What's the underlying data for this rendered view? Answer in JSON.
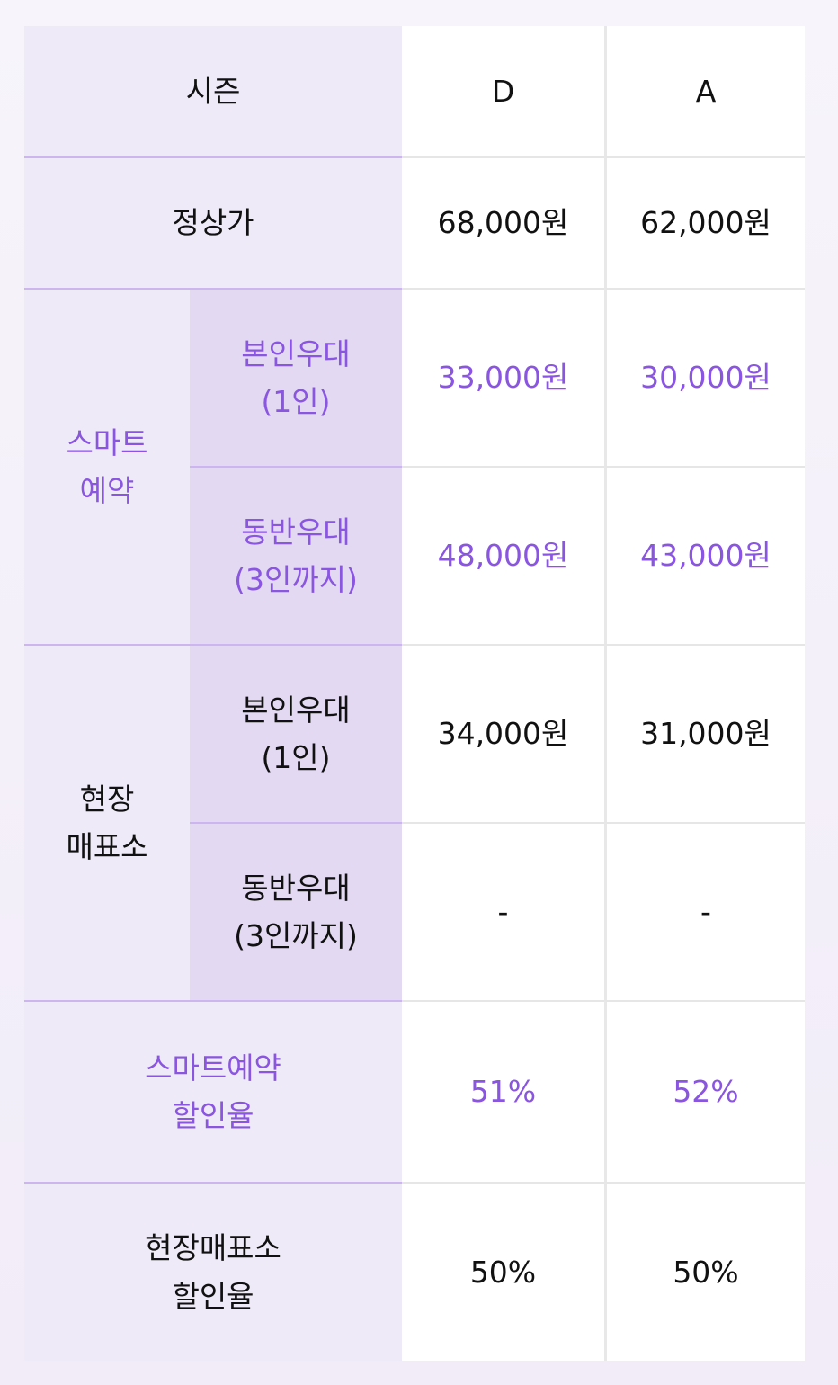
{
  "table": {
    "season_label": "시즌",
    "columns": [
      "D",
      "A"
    ],
    "regular_label": "정상가",
    "regular_prices": [
      "68,000원",
      "62,000원"
    ],
    "smart": {
      "label": "스마트\n예약",
      "self_label": "본인우대\n(1인)",
      "self_prices": [
        "33,000원",
        "30,000원"
      ],
      "companion_label": "동반우대\n(3인까지)",
      "companion_prices": [
        "48,000원",
        "43,000원"
      ]
    },
    "onsite": {
      "label": "현장\n매표소",
      "self_label": "본인우대\n(1인)",
      "self_prices": [
        "34,000원",
        "31,000원"
      ],
      "companion_label": "동반우대\n(3인까지)",
      "companion_prices": [
        "-",
        "-"
      ]
    },
    "smart_discount_label": "스마트예약\n할인율",
    "smart_discount": [
      "51%",
      "52%"
    ],
    "onsite_discount_label": "현장매표소\n할인율",
    "onsite_discount": [
      "50%",
      "50%"
    ]
  },
  "colors": {
    "accent": "#8a55e0",
    "header_bg": "#efeaf8",
    "subheader_bg": "#e3d9f3"
  }
}
